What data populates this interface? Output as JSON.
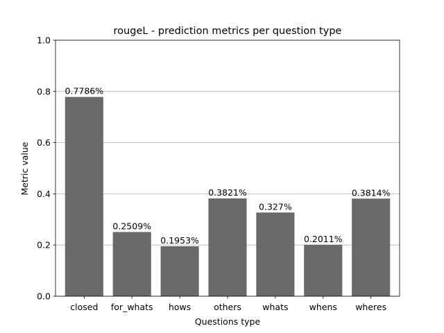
{
  "chart_data": {
    "type": "bar",
    "title": "rougeL - prediction metrics per question type",
    "xlabel": "Questions type",
    "ylabel": "Metric value",
    "categories": [
      "closed",
      "for_whats",
      "hows",
      "others",
      "whats",
      "whens",
      "wheres"
    ],
    "values": [
      0.7786,
      0.2509,
      0.1953,
      0.3821,
      0.327,
      0.2011,
      0.3814
    ],
    "data_labels": [
      "0.7786%",
      "0.2509%",
      "0.1953%",
      "0.3821%",
      "0.327%",
      "0.2011%",
      "0.3814%"
    ],
    "ylim": [
      0,
      1.0
    ],
    "yticks": [
      0.0,
      0.2,
      0.4,
      0.6,
      0.8,
      1.0
    ],
    "ytick_labels": [
      "0.0",
      "0.2",
      "0.4",
      "0.6",
      "0.8",
      "1.0"
    ],
    "grid": "y-major",
    "bar_color": "#696969",
    "grid_color": "#b0b0b0"
  }
}
